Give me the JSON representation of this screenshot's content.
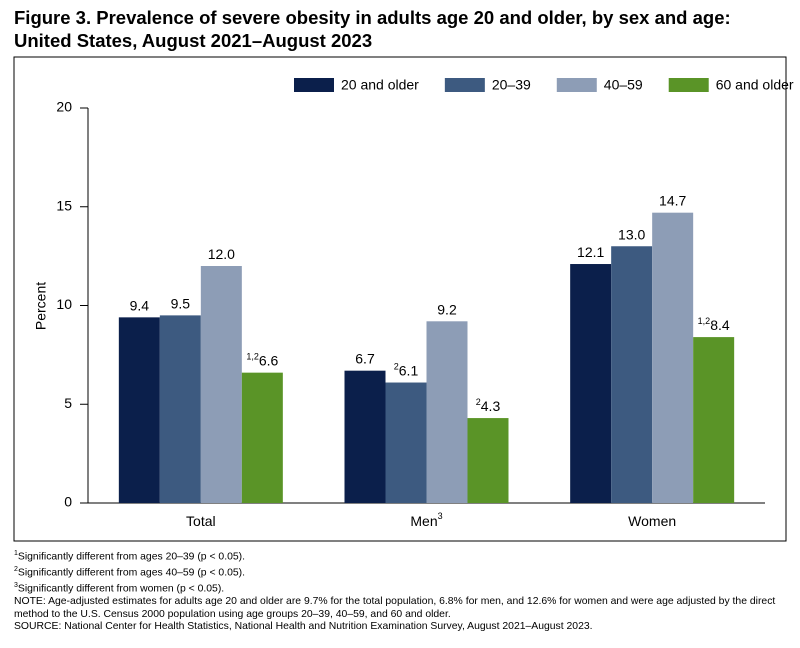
{
  "chart_data": {
    "type": "bar",
    "title_lines": [
      "Figure 3. Prevalence of severe obesity in adults age 20 and older, by sex and age:",
      "United States, August 2021–August 2023"
    ],
    "y_label": "Percent",
    "categories": [
      "Total",
      "Men",
      "Women"
    ],
    "category_notes": [
      null,
      "3",
      null
    ],
    "series": [
      {
        "name": "20 and older",
        "color": "#0b1f4b",
        "values": [
          9.4,
          6.7,
          12.1
        ],
        "value_labels": [
          "9.4",
          "6.7",
          "12.1"
        ],
        "value_notes": [
          null,
          null,
          null
        ]
      },
      {
        "name": "20–39",
        "color": "#3d5a80",
        "values": [
          9.5,
          6.1,
          13.0
        ],
        "value_labels": [
          "9.5",
          "6.1",
          "13.0"
        ],
        "value_notes": [
          null,
          "2",
          null
        ]
      },
      {
        "name": "40–59",
        "color": "#8d9db6",
        "values": [
          12.0,
          9.2,
          14.7
        ],
        "value_labels": [
          "12.0",
          "9.2",
          "14.7"
        ],
        "value_notes": [
          null,
          null,
          null
        ]
      },
      {
        "name": "60 and older",
        "color": "#5a9427",
        "values": [
          6.6,
          4.3,
          8.4
        ],
        "value_labels": [
          "6.6",
          "4.3",
          "8.4"
        ],
        "value_notes": [
          "1,2",
          "2",
          "1,2"
        ]
      }
    ],
    "ylim": [
      0,
      20
    ],
    "yticks": [
      0,
      5,
      10,
      15,
      20
    ],
    "grid": false,
    "legend": "top-right",
    "footnotes": [
      {
        "mark": "1",
        "text": "Significantly different from ages 20–39 (p < 0.05)."
      },
      {
        "mark": "2",
        "text": "Significantly different from ages 40–59 (p < 0.05)."
      },
      {
        "mark": "3",
        "text": "Significantly different from women (p < 0.05)."
      }
    ],
    "note": "NOTE: Age-adjusted estimates for adults age 20 and older are 9.7% for the total population, 6.8% for men, and 12.6% for women and were age adjusted by the direct method to the U.S. Census 2000 population using age groups 20–39, 40–59, and 60 and older.",
    "source": "SOURCE: National Center for Health Statistics, National Health and Nutrition Examination Survey, August 2021–August 2023."
  }
}
